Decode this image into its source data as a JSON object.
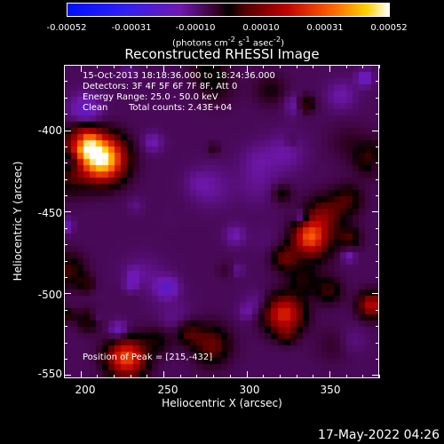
{
  "chart_data": {
    "type": "heatmap",
    "title": "Reconstructed RHESSI Image",
    "xlabel": "Heliocentric X (arcsec)",
    "ylabel": "Heliocentric Y (arcsec)",
    "xlim": [
      190,
      380
    ],
    "ylim": [
      -552,
      -360
    ],
    "xticks": [
      200,
      250,
      300,
      350
    ],
    "yticks": [
      -400,
      -450,
      -500,
      -550
    ],
    "colorbar": {
      "label_prefix": "(photons cm",
      "label_exp1": "-2",
      "label_mid": " s",
      "label_exp2": "-1",
      "label_mid2": " asec",
      "label_exp3": "-2",
      "label_suffix": ")",
      "ticks": [
        "-0.00052",
        "-0.00031",
        "-0.00010",
        "0.00010",
        "0.00031",
        "0.00052"
      ],
      "range": [
        -0.00052,
        0.00052
      ]
    },
    "info": {
      "time": "15-Oct-2013 18:18:36.000 to 18:24:36.000",
      "detectors": "Detectors: 3F 4F 5F 6F 7F 8F, Att 0",
      "energy": "Energy Range: 25.0 - 50.0 keV",
      "method": "Clean",
      "counts": "Total counts: 2.43E+04"
    },
    "peak_label": "Position of Peak = [215,-432]",
    "peak": [
      215,
      -432
    ],
    "grid": false
  },
  "footer": {
    "date": "17-May-2022 04:26"
  },
  "colors": {
    "background": "#000000",
    "text": "#ffffff"
  }
}
